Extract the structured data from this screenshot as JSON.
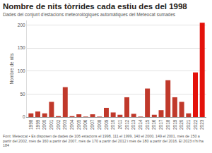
{
  "chart_data": {
    "type": "bar",
    "title": "Nombre de nits tòrrides cada estiu des del 1998",
    "subtitle": "Dades del conjunt d'estacions meteorològiques automàtiques del Meteocat sumades",
    "y_label": "Nombre de nits",
    "note": "Font: Meteocat • Es disposen de dades de 106 estacions el 1998, 111 el 1999, 140 el 2000, 149 el 2001, més de 150 a partir del 2002, més de 160 a partir del 2007, més de 170 a partir del 2012 i més de 180 a partir del 2016. El 2023 n'hi ha 184",
    "categories": [
      "1998",
      "1999",
      "2000",
      "2001",
      "2002",
      "2003",
      "2004",
      "2005",
      "2006",
      "2007",
      "2008",
      "2009",
      "2010",
      "2011",
      "2012",
      "2013",
      "2014",
      "2015",
      "2016",
      "2017",
      "2018",
      "2019",
      "2020",
      "2021",
      "2022",
      "2023"
    ],
    "values": [
      8,
      12,
      8,
      33,
      2,
      65,
      2,
      6,
      1,
      6,
      1,
      20,
      10,
      5,
      43,
      7,
      1,
      62,
      5,
      15,
      80,
      43,
      33,
      8,
      97,
      205
    ],
    "colors": [
      "#c0392b",
      "#c0392b",
      "#c0392b",
      "#c0392b",
      "#c0392b",
      "#c0392b",
      "#c0392b",
      "#c0392b",
      "#c0392b",
      "#c0392b",
      "#c0392b",
      "#c0392b",
      "#c0392b",
      "#c0392b",
      "#c0392b",
      "#c0392b",
      "#c0392b",
      "#c0392b",
      "#c0392b",
      "#c0392b",
      "#c0392b",
      "#c0392b",
      "#c0392b",
      "#c0392b",
      "#e3120b",
      "#e3120b"
    ],
    "ylim": [
      0,
      210
    ],
    "yticks": [
      0,
      50,
      100,
      150,
      200
    ],
    "grid": true
  }
}
